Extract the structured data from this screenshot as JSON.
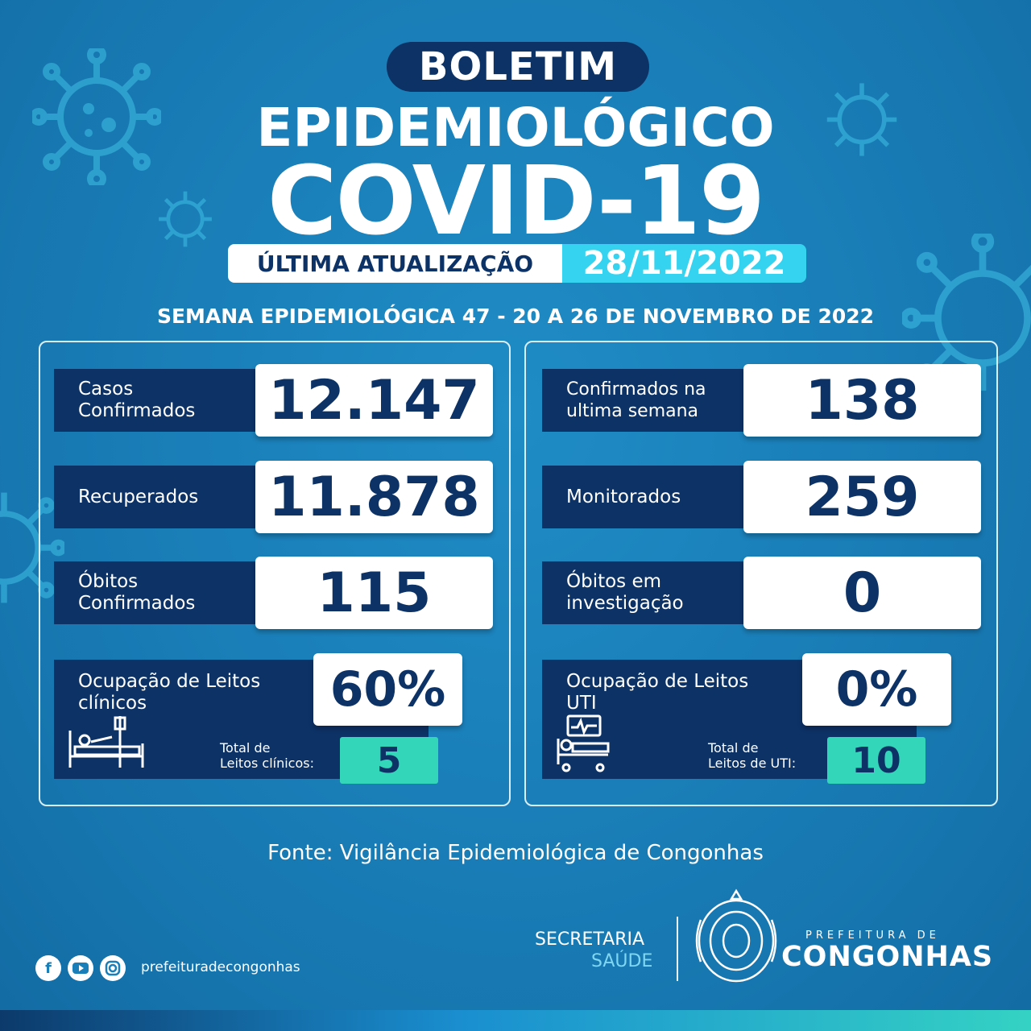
{
  "header": {
    "pill": "BOLETIM",
    "line1": "EPIDEMIOLÓGICO",
    "line2": "COVID-19",
    "update_label": "ÚLTIMA ATUALIZAÇÃO",
    "update_date": "28/11/2022",
    "week": "SEMANA EPIDEMIOLÓGICA 47 - 20 A 26 DE NOVEMBRO DE 2022"
  },
  "left": {
    "casos": {
      "label_1": "Casos",
      "label_2": "Confirmados",
      "value": "12.147"
    },
    "recuperados": {
      "label": "Recuperados",
      "value": "11.878"
    },
    "obitos": {
      "label_1": "Óbitos",
      "label_2": "Confirmados",
      "value": "115"
    },
    "leitos": {
      "label_1": "Ocupação de Leitos",
      "label_2": "clínicos",
      "value": "60%",
      "total_label_1": "Total de",
      "total_label_2": "Leitos clínicos:",
      "total_value": "5",
      "icon": "hospital-bed-icon"
    }
  },
  "right": {
    "semana": {
      "label_1": "Confirmados na",
      "label_2": "ultima semana",
      "value": "138"
    },
    "monitorados": {
      "label": "Monitorados",
      "value": "259"
    },
    "investigacao": {
      "label_1": "Óbitos em",
      "label_2": "investigação",
      "value": "0"
    },
    "uti": {
      "label_1": "Ocupação de Leitos",
      "label_2": "UTI",
      "value": "0%",
      "total_label_1": "Total de",
      "total_label_2": "Leitos de UTI:",
      "total_value": "10",
      "icon": "icu-bed-monitor-icon"
    }
  },
  "fonte": "Fonte: Vigilância Epidemiológica de Congonhas",
  "footer": {
    "social_icons": [
      "facebook-icon",
      "youtube-icon",
      "instagram-icon"
    ],
    "handle": "prefeituradecongonhas",
    "secretaria": "SECRETARIA",
    "saude": "SAÚDE",
    "prefeitura_de": "PREFEITURA DE",
    "congonhas": "CONGONHAS"
  },
  "colors": {
    "background": "#1a7fb8",
    "navy": "#0d3266",
    "cyan": "#35d3ef",
    "teal": "#34d6ba"
  }
}
